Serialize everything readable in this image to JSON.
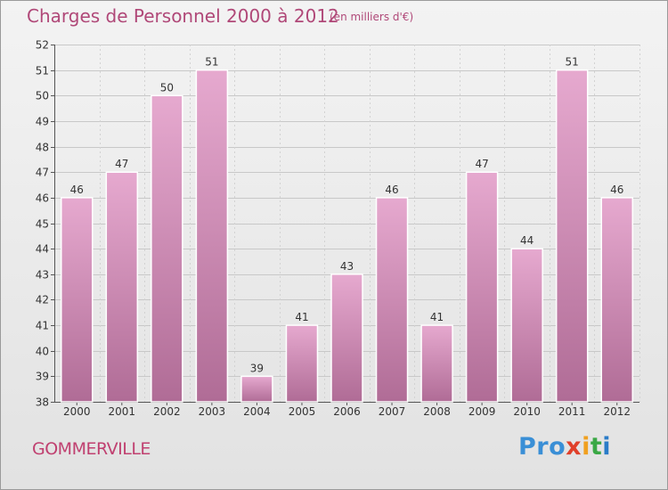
{
  "header": {
    "title": "Charges de Personnel 2000 à 2012",
    "subtitle": "(en milliers d'€)"
  },
  "footer": {
    "city": "GOMMERVILLE",
    "logo": [
      "Pro",
      "x",
      "i",
      "t",
      "i"
    ]
  },
  "colors": {
    "title": "#b04878",
    "bar_top": "#e3a7cc",
    "bar_bottom": "#b06c96",
    "bar_border": "#ffffff"
  },
  "chart_data": {
    "type": "bar",
    "title": "Charges de Personnel 2000 à 2012",
    "subtitle": "(en milliers d'€)",
    "xlabel": "",
    "ylabel": "",
    "categories": [
      "2000",
      "2001",
      "2002",
      "2003",
      "2004",
      "2005",
      "2006",
      "2007",
      "2008",
      "2009",
      "2010",
      "2011",
      "2012"
    ],
    "values": [
      46,
      47,
      50,
      51,
      39,
      41,
      43,
      46,
      41,
      47,
      44,
      51,
      46
    ],
    "ylim": [
      38,
      52
    ],
    "yticks": [
      38,
      39,
      40,
      41,
      42,
      43,
      44,
      45,
      46,
      47,
      48,
      49,
      50,
      51,
      52
    ],
    "grid": true,
    "legend": "none"
  }
}
